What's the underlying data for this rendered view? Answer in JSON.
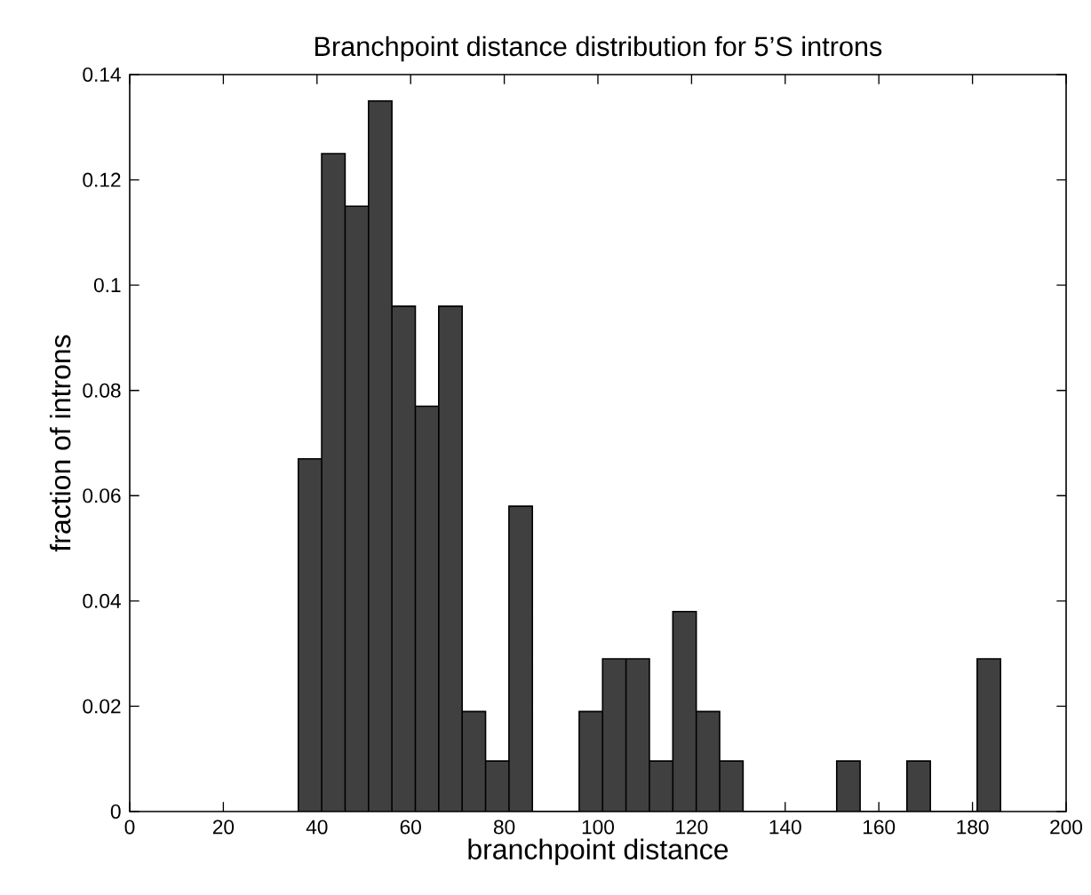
{
  "chart_data": {
    "type": "histogram",
    "title": "Branchpoint distance distribution for 5’S introns",
    "xlabel": "branchpoint distance",
    "ylabel": "fraction of introns",
    "bins": [
      36,
      41,
      46,
      51,
      56,
      61,
      66,
      71,
      76,
      81,
      86,
      91,
      96,
      101,
      106,
      111,
      116,
      121,
      126,
      131,
      136,
      141,
      146,
      151,
      156,
      161,
      166,
      171,
      176,
      181,
      186
    ],
    "values": [
      0.067,
      0.125,
      0.115,
      0.135,
      0.096,
      0.077,
      0.096,
      0.019,
      0.0096,
      0.058,
      0,
      0,
      0.019,
      0.029,
      0.029,
      0.0096,
      0.038,
      0.019,
      0.0096,
      0,
      0,
      0,
      0,
      0.0096,
      0,
      0,
      0.0096,
      0,
      0,
      0.029
    ],
    "color": "#404040",
    "xlim": [
      0,
      200
    ],
    "ylim": [
      0,
      0.14
    ],
    "xticks": [
      0,
      20,
      40,
      60,
      80,
      100,
      120,
      140,
      160,
      180,
      200
    ],
    "yticks": [
      0,
      0.02,
      0.04,
      0.06,
      0.08,
      0.1,
      0.12,
      0.14
    ]
  }
}
